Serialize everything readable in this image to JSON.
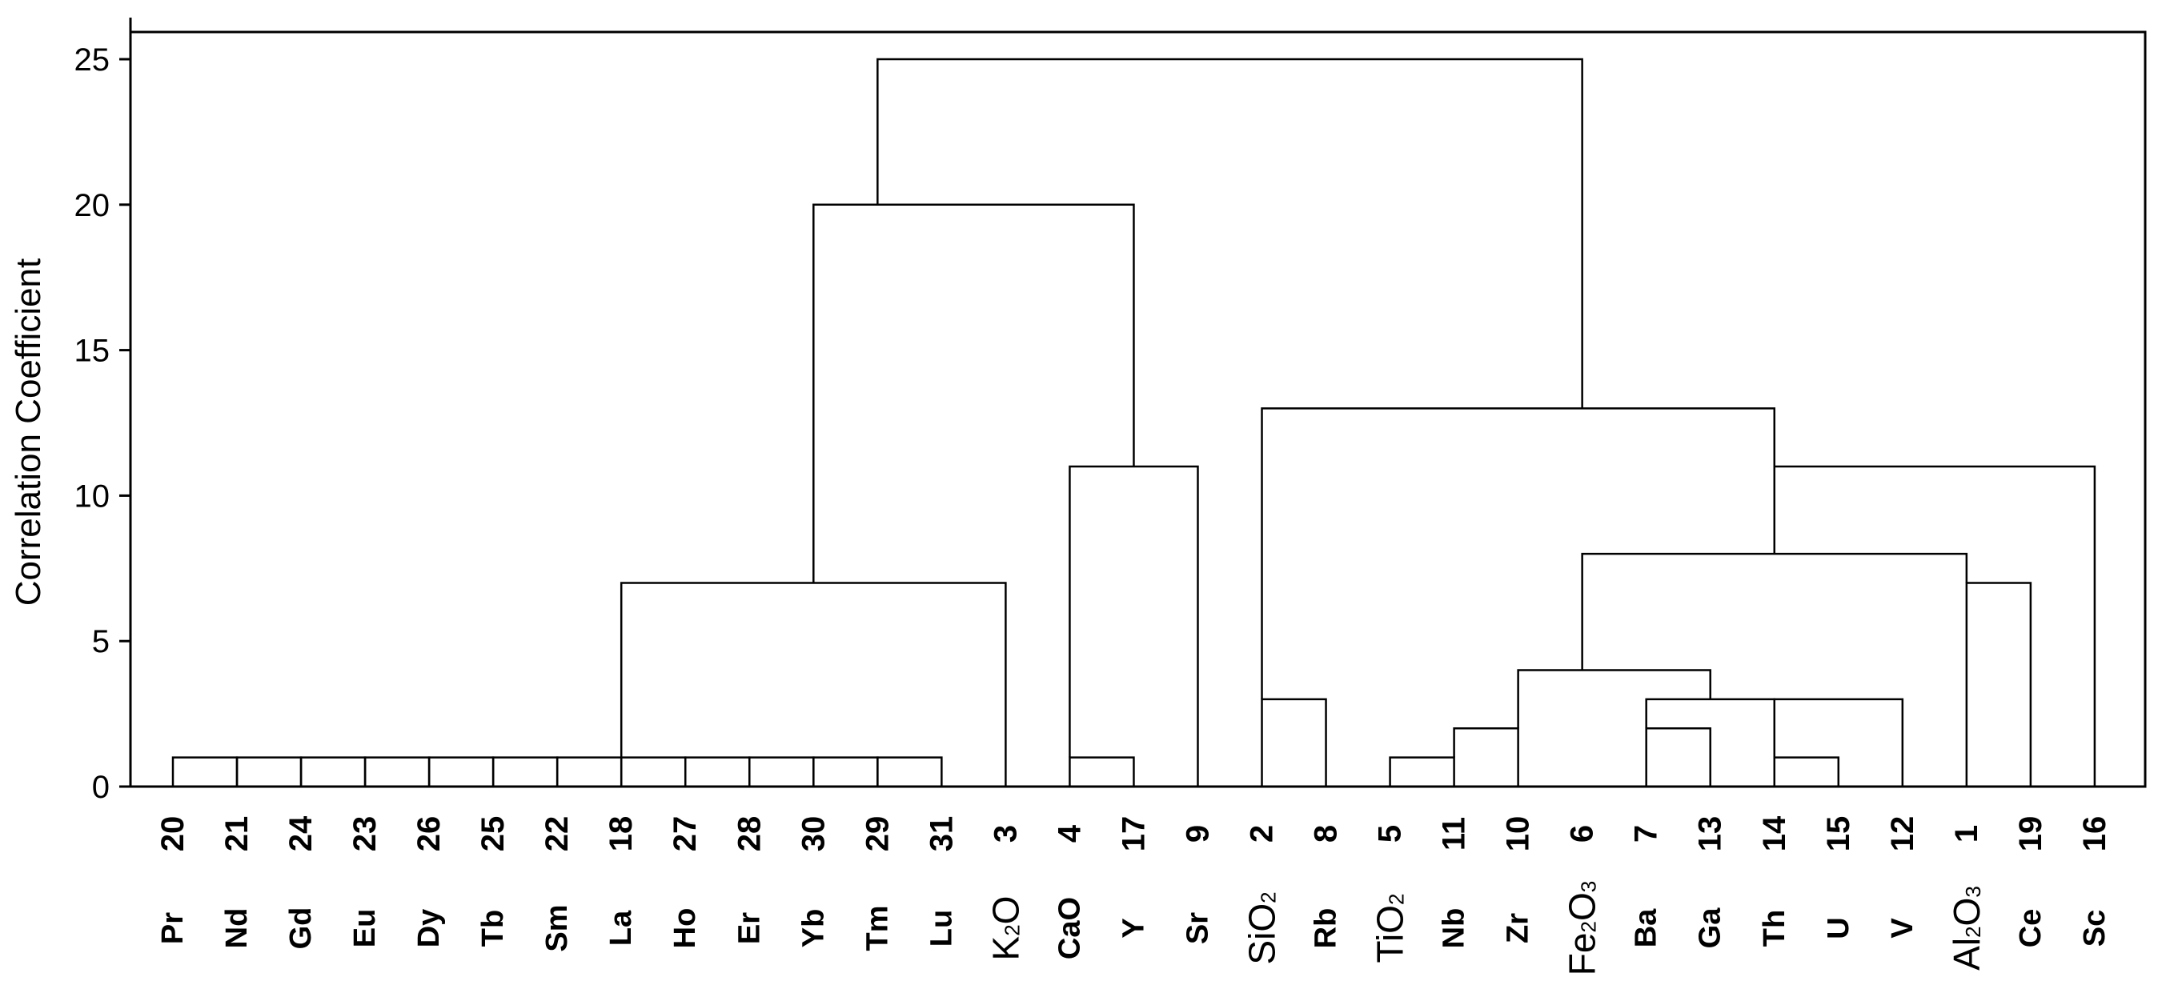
{
  "chart_data": {
    "type": "dendrogram",
    "ylabel": "Correlation Coefficient",
    "ylim": [
      0,
      25
    ],
    "yticks": [
      0,
      5,
      10,
      15,
      20,
      25
    ],
    "leaves": [
      {
        "id": "20",
        "label": "Pr"
      },
      {
        "id": "21",
        "label": "Nd"
      },
      {
        "id": "24",
        "label": "Gd"
      },
      {
        "id": "23",
        "label": "Eu"
      },
      {
        "id": "26",
        "label": "Dy"
      },
      {
        "id": "25",
        "label": "Tb"
      },
      {
        "id": "22",
        "label": "Sm"
      },
      {
        "id": "18",
        "label": "La"
      },
      {
        "id": "27",
        "label": "Ho"
      },
      {
        "id": "28",
        "label": "Er"
      },
      {
        "id": "30",
        "label": "Yb"
      },
      {
        "id": "29",
        "label": "Tm"
      },
      {
        "id": "31",
        "label": "Lu"
      },
      {
        "id": "3",
        "label": "K2O",
        "formula": [
          "K",
          "2",
          "O"
        ]
      },
      {
        "id": "4",
        "label": "CaO"
      },
      {
        "id": "17",
        "label": "Y"
      },
      {
        "id": "9",
        "label": "Sr"
      },
      {
        "id": "2",
        "label": "SiO2",
        "formula": [
          "SiO",
          "2",
          ""
        ]
      },
      {
        "id": "8",
        "label": "Rb"
      },
      {
        "id": "5",
        "label": "TiO2",
        "formula": [
          "TiO",
          "2",
          ""
        ]
      },
      {
        "id": "11",
        "label": "Nb"
      },
      {
        "id": "10",
        "label": "Zr"
      },
      {
        "id": "6",
        "label": "Fe2O3",
        "formula": [
          "Fe",
          "2",
          "O",
          "3",
          ""
        ]
      },
      {
        "id": "7",
        "label": "Ba"
      },
      {
        "id": "13",
        "label": "Ga"
      },
      {
        "id": "14",
        "label": "Th"
      },
      {
        "id": "15",
        "label": "U"
      },
      {
        "id": "12",
        "label": "V"
      },
      {
        "id": "1",
        "label": "Al2O3",
        "formula": [
          "Al",
          "2",
          "O",
          "3",
          ""
        ]
      },
      {
        "id": "19",
        "label": "Ce"
      },
      {
        "id": "16",
        "label": "Sc"
      }
    ],
    "merges": [
      {
        "a": 0,
        "b": 1,
        "h": 1
      },
      {
        "a": 1,
        "b": 2,
        "h": 1
      },
      {
        "a": 2,
        "b": 3,
        "h": 1
      },
      {
        "a": 3,
        "b": 4,
        "h": 1
      },
      {
        "a": 4,
        "b": 5,
        "h": 1
      },
      {
        "a": 5,
        "b": 6,
        "h": 1
      },
      {
        "a": 6,
        "b": 7,
        "h": 1
      },
      {
        "a": 7,
        "b": 8,
        "h": 1
      },
      {
        "a": 8,
        "b": 9,
        "h": 1
      },
      {
        "a": 9,
        "b": 10,
        "h": 1
      },
      {
        "a": 10,
        "b": 11,
        "h": 1
      },
      {
        "a": 11,
        "b": 12,
        "h": 1
      },
      {
        "a": 7,
        "b": 13,
        "h": 7,
        "ha": 1,
        "hb": 0
      },
      {
        "a": 14,
        "b": 15,
        "h": 1
      },
      {
        "a": 14,
        "b": 16,
        "h": 11,
        "ha": 1,
        "hb": 0
      },
      {
        "a": 10,
        "b": 15,
        "h": 20,
        "ha": 7,
        "hb": 11
      },
      {
        "a": 17,
        "b": 18,
        "h": 3
      },
      {
        "a": 19,
        "b": 20,
        "h": 1
      },
      {
        "a": 20,
        "b": 21,
        "h": 2,
        "ha": 1,
        "hb": 0
      },
      {
        "a": 23,
        "b": 24,
        "h": 2
      },
      {
        "a": 25,
        "b": 26,
        "h": 1
      },
      {
        "a": 23,
        "b": 25,
        "h": 3,
        "ha": 2,
        "hb": 1
      },
      {
        "a": 25,
        "b": 27,
        "h": 3,
        "ha": 1,
        "hb": 0
      },
      {
        "a": 21,
        "b": 24,
        "h": 4,
        "ha": 2,
        "hb": 3
      },
      {
        "a": 28,
        "b": 29,
        "h": 7
      },
      {
        "a": 22,
        "b": 28,
        "h": 8,
        "ha": 4,
        "hb": 7
      },
      {
        "a": 25,
        "b": 30,
        "h": 11,
        "ha": 8,
        "hb": 0
      },
      {
        "a": 17,
        "b": 25,
        "h": 13,
        "ha": 3,
        "hb": 11
      },
      {
        "a": 11,
        "b": 22,
        "h": 25,
        "ha": 20,
        "hb": 13
      }
    ]
  }
}
